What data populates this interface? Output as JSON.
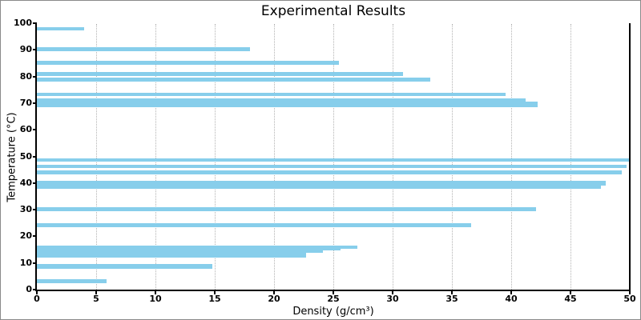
{
  "window": {
    "background": "#ffffff",
    "frame_border_color": "#8a8a8a"
  },
  "chart_data": {
    "type": "bar",
    "orientation": "horizontal",
    "title": "Experimental Results",
    "xlabel": "Density (g/cm³)",
    "ylabel": "Temperature (°C)",
    "xlim": [
      0,
      50
    ],
    "ylim": [
      0,
      100
    ],
    "xticks": [
      0,
      5,
      10,
      15,
      20,
      25,
      30,
      35,
      40,
      45,
      50
    ],
    "yticks": [
      0,
      10,
      20,
      30,
      40,
      50,
      60,
      70,
      80,
      90,
      100
    ],
    "grid": "vertical dotted gridlines at interior x ticks",
    "legend": "none",
    "bar_color": "#87CEEB",
    "grid_color": "#b3b3b3",
    "axis_color": "#000000",
    "points": [
      {
        "temperature": 97.8,
        "density": 4.0,
        "thickness": 1.3
      },
      {
        "temperature": 90.2,
        "density": 18.0,
        "thickness": 1.7
      },
      {
        "temperature": 85.2,
        "density": 25.5,
        "thickness": 1.6
      },
      {
        "temperature": 80.9,
        "density": 30.9,
        "thickness": 1.5
      },
      {
        "temperature": 78.8,
        "density": 33.2,
        "thickness": 1.5
      },
      {
        "temperature": 73.3,
        "density": 39.5,
        "thickness": 1.4
      },
      {
        "temperature": 71.0,
        "density": 41.2,
        "thickness": 1.4
      },
      {
        "temperature": 69.5,
        "density": 42.2,
        "thickness": 1.9
      },
      {
        "temperature": 48.6,
        "density": 49.9,
        "thickness": 1.2
      },
      {
        "temperature": 46.2,
        "density": 49.7,
        "thickness": 1.2
      },
      {
        "temperature": 44.0,
        "density": 49.3,
        "thickness": 1.5
      },
      {
        "temperature": 40.0,
        "density": 48.0,
        "thickness": 1.8
      },
      {
        "temperature": 38.4,
        "density": 47.6,
        "thickness": 1.2
      },
      {
        "temperature": 30.2,
        "density": 42.1,
        "thickness": 1.5
      },
      {
        "temperature": 24.2,
        "density": 36.6,
        "thickness": 1.5
      },
      {
        "temperature": 15.9,
        "density": 27.0,
        "thickness": 1.0
      },
      {
        "temperature": 15.1,
        "density": 25.6,
        "thickness": 0.8
      },
      {
        "temperature": 14.2,
        "density": 24.1,
        "thickness": 1.0
      },
      {
        "temperature": 12.9,
        "density": 22.7,
        "thickness": 1.7
      },
      {
        "temperature": 8.6,
        "density": 14.8,
        "thickness": 1.8
      },
      {
        "temperature": 3.2,
        "density": 5.9,
        "thickness": 1.7
      }
    ]
  }
}
